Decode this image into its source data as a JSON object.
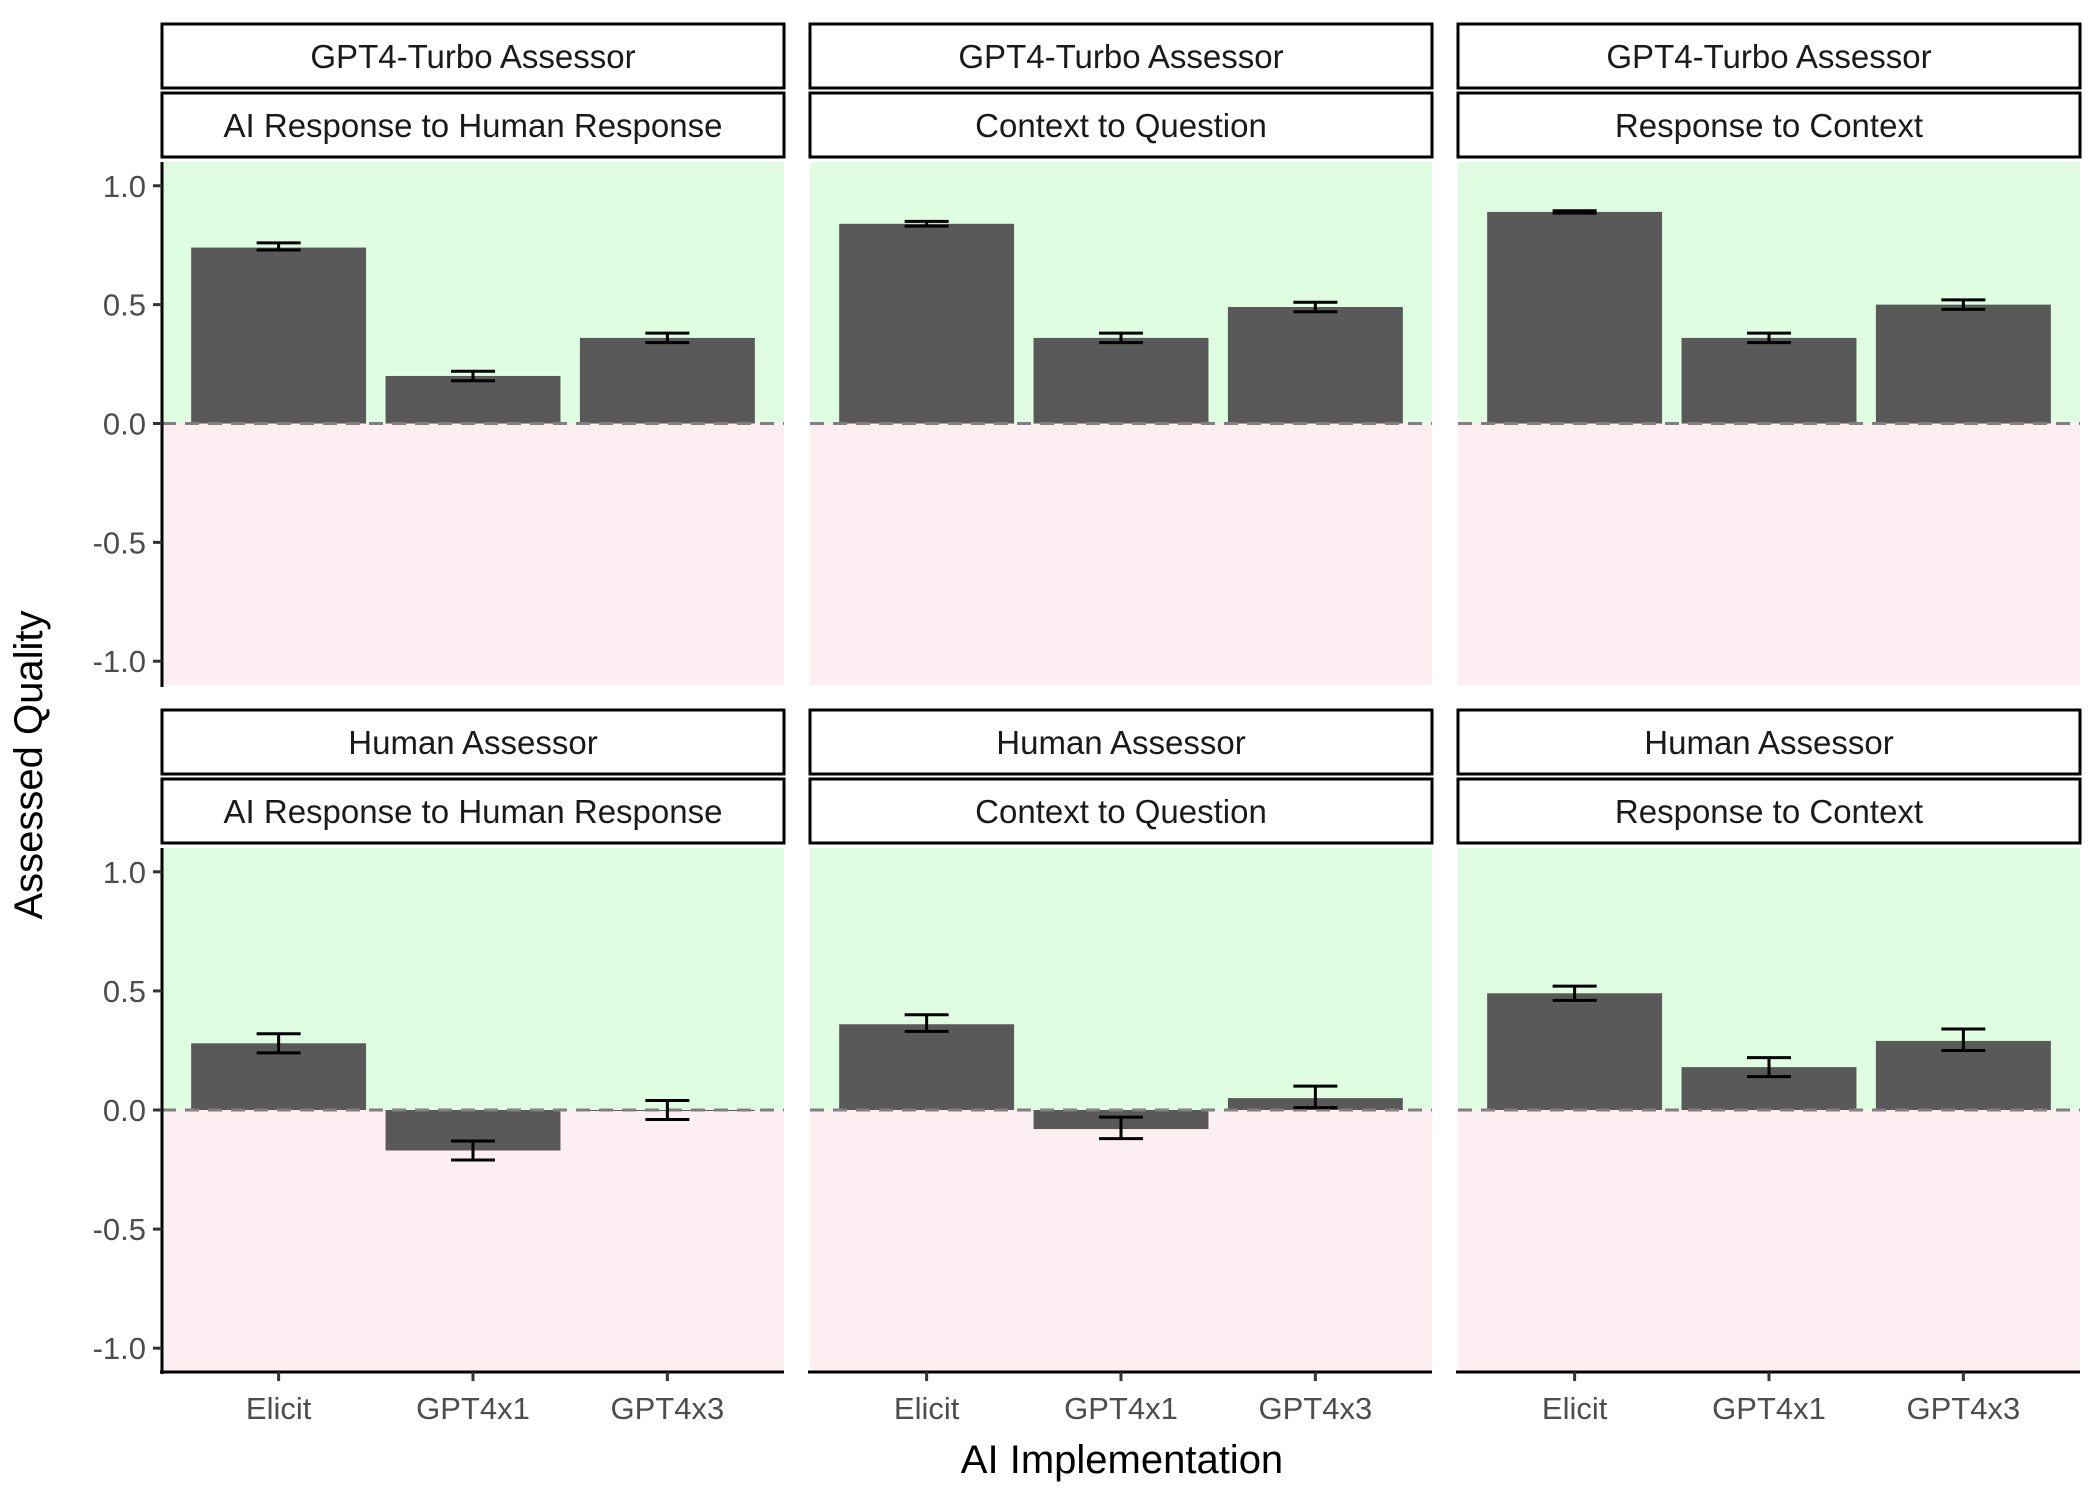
{
  "chart_data": {
    "type": "bar",
    "layout": "facet-grid",
    "xlabel": "AI Implementation",
    "ylabel": "Assessed Quality",
    "ylim": [
      -1.1,
      1.1
    ],
    "yticks": [
      1.0,
      0.5,
      0.0,
      -0.5,
      -1.0
    ],
    "ytick_labels": [
      "1.0",
      "0.5",
      "0.0",
      "-0.5",
      "-1.0"
    ],
    "categories": [
      "Elicit",
      "GPT4x1",
      "GPT4x3"
    ],
    "reference_line": 0.0,
    "colors": {
      "bar": "#595959",
      "positive_region": "#dffde0",
      "negative_region": "#fdeef1",
      "reference_line": "#808080",
      "error_bar": "#000000"
    },
    "grid": false,
    "panels": [
      {
        "row_label": "GPT4-Turbo Assessor",
        "col_label": "AI Response to Human Response",
        "values": [
          0.74,
          0.2,
          0.36
        ],
        "error_low": [
          0.73,
          0.18,
          0.34
        ],
        "error_high": [
          0.76,
          0.22,
          0.38
        ]
      },
      {
        "row_label": "GPT4-Turbo Assessor",
        "col_label": "Context to Question",
        "values": [
          0.84,
          0.36,
          0.49
        ],
        "error_low": [
          0.83,
          0.34,
          0.47
        ],
        "error_high": [
          0.85,
          0.38,
          0.51
        ]
      },
      {
        "row_label": "GPT4-Turbo Assessor",
        "col_label": "Response to Context",
        "values": [
          0.89,
          0.36,
          0.5
        ],
        "error_low": [
          0.885,
          0.34,
          0.48
        ],
        "error_high": [
          0.895,
          0.38,
          0.52
        ]
      },
      {
        "row_label": "Human Assessor",
        "col_label": "AI Response to Human Response",
        "values": [
          0.28,
          -0.17,
          0.0
        ],
        "error_low": [
          0.24,
          -0.21,
          -0.04
        ],
        "error_high": [
          0.32,
          -0.13,
          0.04
        ]
      },
      {
        "row_label": "Human Assessor",
        "col_label": "Context to Question",
        "values": [
          0.36,
          -0.08,
          0.05
        ],
        "error_low": [
          0.33,
          -0.12,
          0.01
        ],
        "error_high": [
          0.4,
          -0.03,
          0.1
        ]
      },
      {
        "row_label": "Human Assessor",
        "col_label": "Response to Context",
        "values": [
          0.49,
          0.18,
          0.29
        ],
        "error_low": [
          0.46,
          0.14,
          0.25
        ],
        "error_high": [
          0.52,
          0.22,
          0.34
        ]
      }
    ]
  }
}
